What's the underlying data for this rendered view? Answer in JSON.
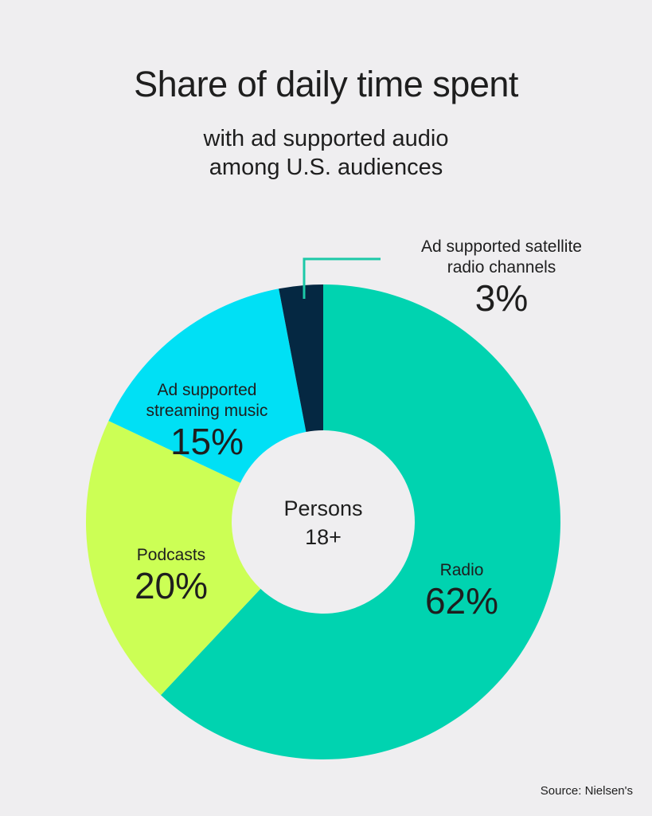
{
  "chart_data": {
    "type": "pie",
    "donut": true,
    "title": "Share of daily time spent",
    "subtitle_lines": [
      "with ad supported audio",
      "among U.S. audiences"
    ],
    "center_label_lines": [
      "Persons",
      "18+"
    ],
    "slices": [
      {
        "name": "Radio",
        "value": 62,
        "label": "62%",
        "color": "#00d3b0"
      },
      {
        "name": "Podcasts",
        "value": 20,
        "label": "20%",
        "color": "#ccff55"
      },
      {
        "name_lines": [
          "Ad supported",
          "streaming music"
        ],
        "value": 15,
        "label": "15%",
        "color": "#00e0f5"
      },
      {
        "name_lines": [
          "Ad supported satellite",
          "radio channels"
        ],
        "value": 3,
        "label": "3%",
        "color": "#052842"
      }
    ],
    "start": "top",
    "direction": "clockwise",
    "leader_color": "#1cc9a8"
  },
  "source": "Source: Nielsen's"
}
